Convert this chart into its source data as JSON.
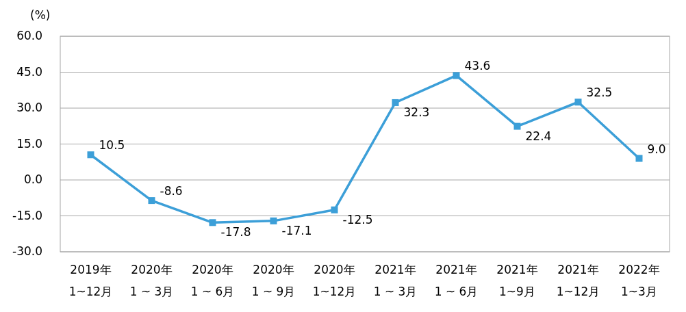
{
  "chart_data": {
    "type": "line",
    "ylabel": "(%)",
    "categories": [
      "2019年\n1~12月",
      "2020年\n1 ~ 3月",
      "2020年\n1 ~ 6月",
      "2020年\n1 ~ 9月",
      "2020年\n1~12月",
      "2021年\n1 ~ 3月",
      "2021年\n1 ~ 6月",
      "2021年\n1~9月",
      "2021年\n1~12月",
      "2022年\n1~3月"
    ],
    "series": [
      {
        "color": "#3c9fd8",
        "values": [
          10.5,
          -8.6,
          -17.8,
          -17.1,
          -12.5,
          32.3,
          43.6,
          22.4,
          32.5,
          9.0
        ],
        "value_labels": [
          "10.5",
          "-8.6",
          "-17.8",
          "-17.1",
          "-12.5",
          "32.3",
          "43.6",
          "22.4",
          "32.5",
          "9.0"
        ]
      }
    ],
    "ylim": [
      -30,
      60
    ],
    "yticks": [
      {
        "value": -30,
        "label": "-30.0"
      },
      {
        "value": -15,
        "label": "-15.0"
      },
      {
        "value": 0,
        "label": "0.0"
      },
      {
        "value": 15,
        "label": "15.0"
      },
      {
        "value": 30,
        "label": "30.0"
      },
      {
        "value": 45,
        "label": "45.0"
      },
      {
        "value": 60,
        "label": "60.0"
      }
    ],
    "grid": "y",
    "marker": "square",
    "line_style": "solid"
  }
}
